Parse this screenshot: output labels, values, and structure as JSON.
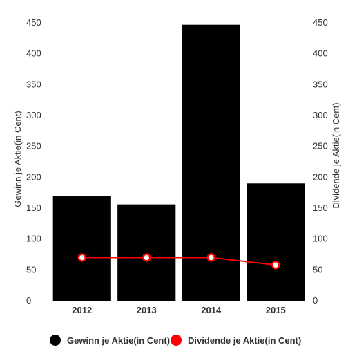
{
  "chart_data": {
    "type": "bar",
    "categories": [
      "2012",
      "2013",
      "2014",
      "2015"
    ],
    "series": [
      {
        "name": "Gewinn je Aktie(in Cent)",
        "type": "bar",
        "axis": "left",
        "color": "#000000",
        "values": [
          169,
          156,
          447,
          190
        ]
      },
      {
        "name": "Dividende je Aktie(in Cent)",
        "type": "line",
        "axis": "right",
        "color": "#ff0000",
        "values": [
          70,
          70,
          70,
          58
        ]
      }
    ],
    "ylabel": "Gewinn je Aktie(in Cent)",
    "y2label": "Dividende je Aktie(in Cent)",
    "ylim": [
      0,
      450
    ],
    "y2lim": [
      0,
      450
    ],
    "yticks": [
      "0",
      "50",
      "100",
      "150",
      "200",
      "250",
      "300",
      "350",
      "400",
      "450"
    ],
    "y2ticks": [
      "0",
      "50",
      "100",
      "150",
      "200",
      "250",
      "300",
      "350",
      "400",
      "450"
    ],
    "grid": false,
    "legend": "bottom-center"
  }
}
